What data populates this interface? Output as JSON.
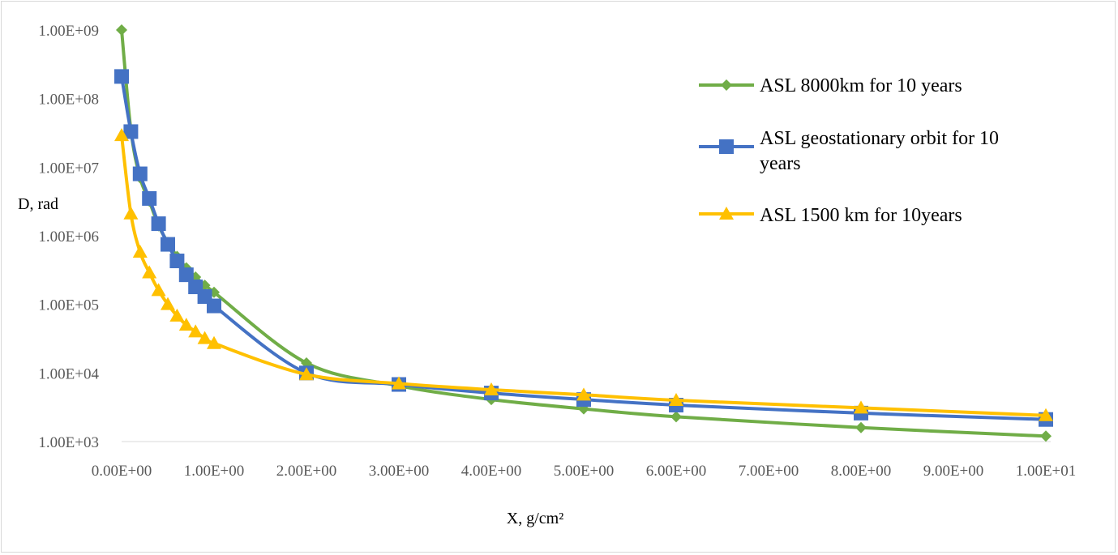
{
  "chart_data": {
    "type": "line",
    "xlabel": "X, g/cm²",
    "ylabel": "D, rad",
    "x_scale": "linear",
    "y_scale": "log",
    "xlim": [
      0,
      10
    ],
    "ylim": [
      1000,
      1000000000
    ],
    "x_ticks": [
      0,
      1,
      2,
      3,
      4,
      5,
      6,
      7,
      8,
      9,
      10
    ],
    "x_tick_labels": [
      "0.00E+00",
      "1.00E+00",
      "2.00E+00",
      "3.00E+00",
      "4.00E+00",
      "5.00E+00",
      "6.00E+00",
      "7.00E+00",
      "8.00E+00",
      "9.00E+00",
      "1.00E+01"
    ],
    "y_ticks": [
      1000,
      10000,
      100000,
      1000000,
      10000000,
      100000000,
      1000000000
    ],
    "y_tick_labels": [
      "1.00E+03",
      "1.00E+04",
      "1.00E+05",
      "1.00E+06",
      "1.00E+07",
      "1.00E+08",
      "1.00E+09"
    ],
    "grid": false,
    "legend_position": "right",
    "series": [
      {
        "name": "ASL 8000km for 10 years",
        "color": "#70ad47",
        "marker": "diamond",
        "points": [
          [
            0,
            1000000000
          ],
          [
            0.1,
            35000000
          ],
          [
            0.2,
            7000000
          ],
          [
            0.3,
            3200000
          ],
          [
            0.4,
            1400000
          ],
          [
            0.5,
            800000
          ],
          [
            0.6,
            500000
          ],
          [
            0.7,
            340000
          ],
          [
            0.8,
            250000
          ],
          [
            0.9,
            190000
          ],
          [
            1.0,
            150000
          ],
          [
            2.0,
            14000
          ],
          [
            3.0,
            6500
          ],
          [
            4.0,
            4100
          ],
          [
            5.0,
            3000
          ],
          [
            6.0,
            2300
          ],
          [
            8.0,
            1600
          ],
          [
            10.0,
            1200
          ]
        ]
      },
      {
        "name": "ASL geostationary orbit for 10 years",
        "color": "#4472c4",
        "marker": "square",
        "points": [
          [
            0,
            210000000
          ],
          [
            0.1,
            33000000
          ],
          [
            0.2,
            8000000
          ],
          [
            0.3,
            3500000
          ],
          [
            0.4,
            1500000
          ],
          [
            0.5,
            750000
          ],
          [
            0.6,
            430000
          ],
          [
            0.7,
            270000
          ],
          [
            0.8,
            180000
          ],
          [
            0.9,
            130000
          ],
          [
            1.0,
            95000
          ],
          [
            2.0,
            10000
          ],
          [
            3.0,
            6800
          ],
          [
            4.0,
            5100
          ],
          [
            5.0,
            4100
          ],
          [
            6.0,
            3400
          ],
          [
            8.0,
            2600
          ],
          [
            10.0,
            2100
          ]
        ]
      },
      {
        "name": "ASL 1500 km for 10years",
        "color": "#ffc000",
        "marker": "triangle",
        "points": [
          [
            0,
            29000000
          ],
          [
            0.1,
            2100000
          ],
          [
            0.2,
            580000
          ],
          [
            0.3,
            290000
          ],
          [
            0.4,
            160000
          ],
          [
            0.5,
            100000
          ],
          [
            0.6,
            68000
          ],
          [
            0.7,
            50000
          ],
          [
            0.8,
            40000
          ],
          [
            0.9,
            32000
          ],
          [
            1.0,
            27000
          ],
          [
            2.0,
            9500
          ],
          [
            3.0,
            7000
          ],
          [
            4.0,
            5700
          ],
          [
            5.0,
            4800
          ],
          [
            6.0,
            4000
          ],
          [
            8.0,
            3100
          ],
          [
            10.0,
            2400
          ]
        ]
      }
    ]
  }
}
